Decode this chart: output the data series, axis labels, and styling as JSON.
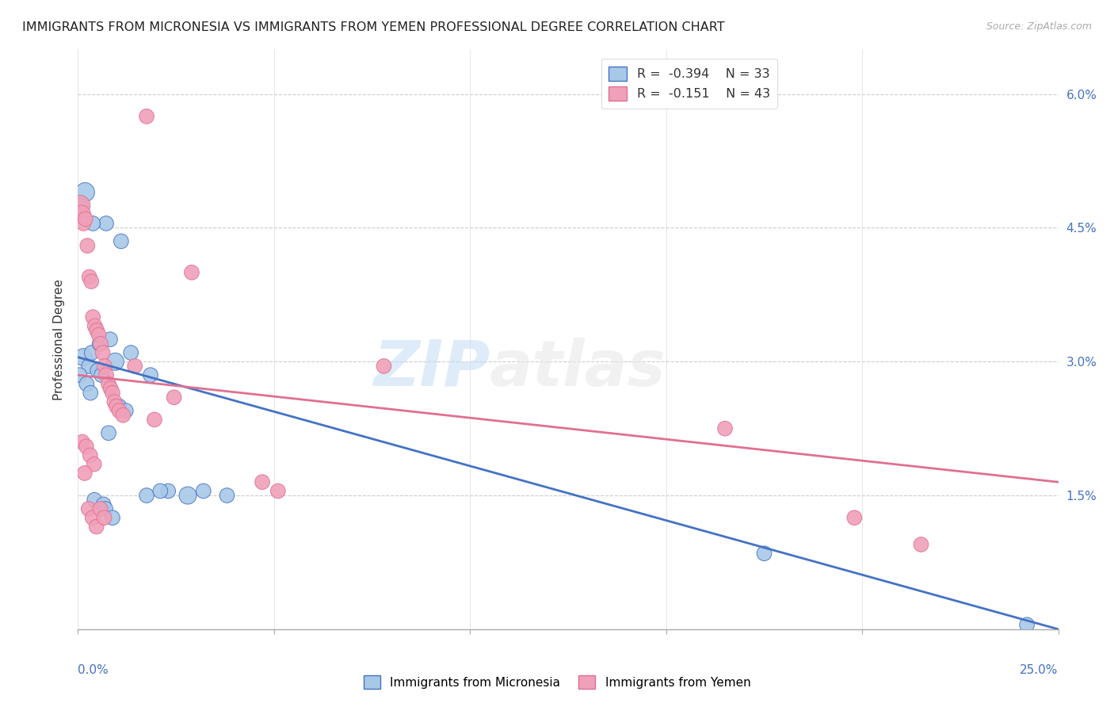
{
  "title": "IMMIGRANTS FROM MICRONESIA VS IMMIGRANTS FROM YEMEN PROFESSIONAL DEGREE CORRELATION CHART",
  "source": "Source: ZipAtlas.com",
  "ylabel": "Professional Degree",
  "xlim": [
    0.0,
    25.0
  ],
  "ylim": [
    0.0,
    6.5
  ],
  "yticks": [
    0.0,
    1.5,
    3.0,
    4.5,
    6.0
  ],
  "xticks": [
    0.0,
    5.0,
    10.0,
    15.0,
    20.0,
    25.0
  ],
  "legend_r_micro": "R =  -0.394",
  "legend_n_micro": "N = 33",
  "legend_r_yemen": "R =  -0.151",
  "legend_n_yemen": "N = 43",
  "color_micro": "#a8c8e8",
  "color_yemen": "#f0a0b8",
  "line_color_micro": "#4472c4",
  "line_color_yemen": "#e07090",
  "watermark_zip": "ZIP",
  "watermark_atlas": "atlas",
  "micro_line_x0": 0.0,
  "micro_line_y0": 3.05,
  "micro_line_x1": 25.0,
  "micro_line_y1": 0.0,
  "yemen_line_x0": 0.0,
  "yemen_line_y0": 2.85,
  "yemen_line_x1": 25.0,
  "yemen_line_y1": 1.65,
  "micro_x": [
    0.18,
    0.72,
    1.1,
    0.08,
    0.38,
    0.14,
    0.28,
    0.35,
    0.55,
    0.82,
    0.95,
    1.35,
    1.85,
    2.3,
    2.8,
    0.04,
    0.22,
    0.32,
    0.42,
    0.65,
    1.05,
    1.22,
    1.75,
    2.1,
    0.5,
    0.6,
    0.7,
    0.78,
    0.88,
    3.2,
    3.8,
    17.5,
    24.2
  ],
  "micro_y": [
    4.9,
    4.55,
    4.35,
    4.75,
    4.55,
    3.05,
    2.95,
    3.1,
    3.2,
    3.25,
    3.0,
    3.1,
    2.85,
    1.55,
    1.5,
    2.85,
    2.75,
    2.65,
    1.45,
    1.4,
    2.5,
    2.45,
    1.5,
    1.55,
    2.9,
    2.85,
    1.35,
    2.2,
    1.25,
    1.55,
    1.5,
    0.85,
    0.05
  ],
  "micro_sizes": [
    300,
    180,
    180,
    180,
    180,
    250,
    180,
    180,
    180,
    180,
    250,
    180,
    180,
    180,
    250,
    180,
    180,
    180,
    180,
    180,
    180,
    180,
    180,
    180,
    180,
    180,
    180,
    180,
    180,
    180,
    180,
    180,
    180
  ],
  "yemen_x": [
    0.05,
    0.09,
    0.14,
    0.19,
    0.24,
    0.29,
    0.34,
    0.38,
    0.43,
    0.48,
    0.53,
    0.58,
    0.63,
    0.68,
    0.72,
    0.78,
    0.83,
    0.88,
    0.93,
    0.98,
    1.05,
    1.15,
    1.45,
    1.95,
    2.45,
    2.9,
    0.11,
    0.21,
    0.31,
    0.41,
    4.7,
    5.1,
    7.8,
    16.5,
    19.8,
    21.5,
    0.17,
    0.27,
    0.37,
    0.47,
    0.57,
    0.67,
    1.75
  ],
  "yemen_y": [
    4.75,
    4.65,
    4.55,
    4.6,
    4.3,
    3.95,
    3.9,
    3.5,
    3.4,
    3.35,
    3.3,
    3.2,
    3.1,
    2.95,
    2.85,
    2.75,
    2.7,
    2.65,
    2.55,
    2.5,
    2.45,
    2.4,
    2.95,
    2.35,
    2.6,
    4.0,
    2.1,
    2.05,
    1.95,
    1.85,
    1.65,
    1.55,
    2.95,
    2.25,
    1.25,
    0.95,
    1.75,
    1.35,
    1.25,
    1.15,
    1.35,
    1.25,
    5.75
  ],
  "yemen_sizes": [
    350,
    280,
    180,
    180,
    180,
    180,
    180,
    180,
    180,
    180,
    180,
    180,
    180,
    180,
    180,
    180,
    180,
    180,
    180,
    180,
    180,
    180,
    180,
    180,
    180,
    180,
    180,
    180,
    180,
    180,
    180,
    180,
    180,
    180,
    180,
    180,
    180,
    180,
    180,
    180,
    180,
    180,
    180
  ]
}
